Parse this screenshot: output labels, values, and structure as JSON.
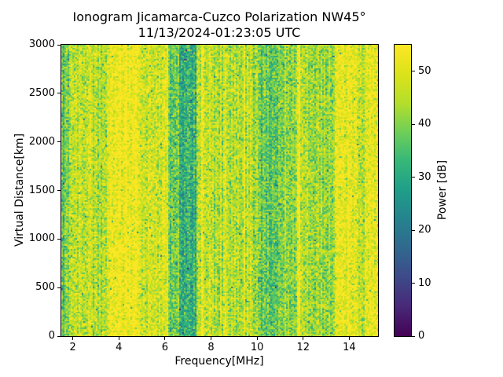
{
  "chart_data": {
    "type": "heatmap",
    "title": "Ionogram Jicamarca-Cuzco Polarization NW45°",
    "subtitle": "11/13/2024-01:23:05 UTC",
    "xlabel": "Frequency[MHz]",
    "ylabel": "Virtual Distance[km]",
    "xlim": [
      1.5,
      15.25
    ],
    "ylim": [
      0,
      3000
    ],
    "xticks": [
      2,
      4,
      6,
      8,
      10,
      12,
      14
    ],
    "yticks": [
      0,
      500,
      1000,
      1500,
      2000,
      2500,
      3000
    ],
    "grid": false,
    "legend": "none",
    "colorbar": {
      "label": "Power [dB]",
      "vmin": 0,
      "vmax": 55,
      "ticks": [
        0,
        10,
        20,
        30,
        40,
        50
      ],
      "colormap": "viridis"
    },
    "colormap_stops": [
      [
        0.0,
        "#440154"
      ],
      [
        0.1,
        "#482878"
      ],
      [
        0.2,
        "#3e4989"
      ],
      [
        0.3,
        "#31688e"
      ],
      [
        0.4,
        "#26828e"
      ],
      [
        0.5,
        "#1f9e89"
      ],
      [
        0.6,
        "#35b779"
      ],
      [
        0.7,
        "#6ece58"
      ],
      [
        0.8,
        "#b5de2b"
      ],
      [
        0.9,
        "#dce319"
      ],
      [
        1.0,
        "#fde725"
      ]
    ],
    "content": "Noisy ionogram with no distinct echo trace: speckled frequency-dependent background power organized in vertical bands and thin stripes, statistically uniform over virtual distance 0-3000 km.",
    "noise": {
      "seed": 7,
      "cell_amp_dB": 13,
      "column_jitter_dB": 3.5,
      "stripe_prob": 0.07,
      "stripe_extra_dB": 8,
      "dark_speck_prob": 0.012
    },
    "band_profile_dB": [
      [
        1.5,
        1.62,
        34.0
      ],
      [
        1.62,
        2.1,
        44.5
      ],
      [
        2.1,
        2.8,
        47.5
      ],
      [
        2.8,
        3.45,
        44.0
      ],
      [
        3.45,
        4.85,
        52.5
      ],
      [
        4.85,
        5.5,
        49.0
      ],
      [
        5.5,
        5.85,
        46.5
      ],
      [
        5.85,
        6.15,
        49.0
      ],
      [
        6.15,
        6.6,
        38.0
      ],
      [
        6.6,
        7.28,
        32.0
      ],
      [
        7.28,
        7.4,
        29.0
      ],
      [
        7.4,
        7.5,
        45.0
      ],
      [
        7.5,
        8.1,
        48.5
      ],
      [
        8.1,
        8.5,
        44.5
      ],
      [
        8.5,
        8.65,
        49.0
      ],
      [
        8.65,
        9.35,
        44.5
      ],
      [
        9.35,
        9.85,
        47.0
      ],
      [
        9.85,
        10.2,
        42.0
      ],
      [
        10.2,
        11.1,
        37.5
      ],
      [
        11.1,
        11.45,
        42.0
      ],
      [
        11.45,
        11.72,
        41.0
      ],
      [
        11.72,
        11.88,
        53.5
      ],
      [
        11.88,
        12.6,
        43.5
      ],
      [
        12.6,
        13.4,
        42.5
      ],
      [
        13.4,
        14.35,
        52.5
      ],
      [
        14.35,
        14.65,
        46.5
      ],
      [
        14.65,
        15.25,
        52.5
      ]
    ]
  }
}
